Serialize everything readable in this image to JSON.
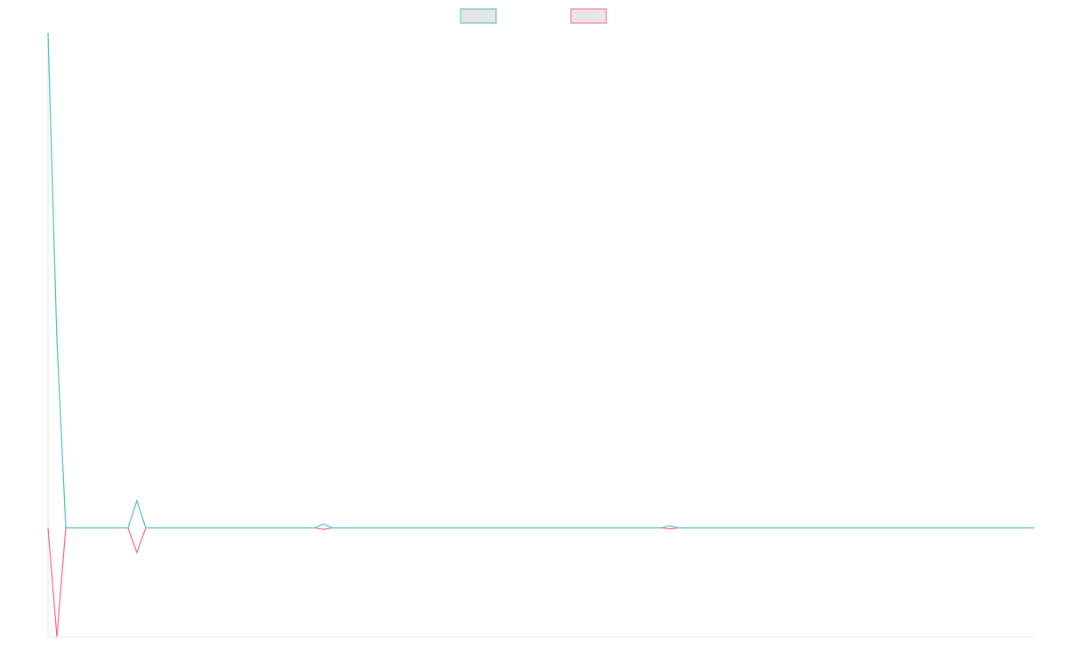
{
  "chart_data": {
    "type": "line",
    "title": "",
    "xlabel": "",
    "ylabel": "",
    "legend": {
      "placement": "top-center",
      "entries": [
        {
          "color": "#4bc0c0",
          "fill": "#e6e6e6"
        },
        {
          "color": "#ff6384",
          "fill": "#e6e6e6"
        }
      ]
    },
    "grid": false,
    "x": [
      0,
      1,
      2,
      3,
      4,
      5,
      6,
      7,
      8,
      9,
      10,
      11,
      12,
      13,
      14,
      15,
      16,
      17,
      18,
      19,
      20,
      21,
      22,
      23,
      24,
      25,
      26,
      27,
      28,
      29,
      30,
      31,
      32,
      33,
      34,
      35,
      36,
      37,
      38,
      39,
      40,
      41,
      42,
      43,
      44,
      45,
      46,
      47,
      48,
      49,
      50,
      51,
      52,
      53,
      54,
      55,
      56,
      57,
      58,
      59,
      60,
      61,
      62,
      63,
      64,
      65,
      66,
      67,
      68,
      69,
      70,
      71,
      72,
      73,
      74,
      75,
      76,
      77,
      78,
      79,
      80,
      81,
      82,
      83,
      84,
      85,
      86,
      87,
      88,
      89,
      90,
      91,
      92,
      93,
      94,
      95,
      96,
      97,
      98,
      99,
      100,
      101,
      102,
      103,
      104,
      105,
      106,
      107,
      108,
      109,
      110,
      111
    ],
    "xlim": [
      0,
      111
    ],
    "ylim": [
      -22,
      100
    ],
    "series": [
      {
        "color": "#4bc0c0",
        "values": [
          100,
          38,
          0,
          0,
          0,
          0,
          0,
          0,
          0,
          0,
          5.5,
          0,
          0,
          0,
          0,
          0,
          0,
          0,
          0,
          0,
          0,
          0,
          0,
          0,
          0,
          0,
          0,
          0,
          0,
          0,
          0,
          0.8,
          0,
          0,
          0,
          0,
          0,
          0,
          0,
          0,
          0,
          0,
          0,
          0,
          0,
          0,
          0,
          0,
          0,
          0,
          0,
          0,
          0,
          0,
          0,
          0,
          0,
          0,
          0,
          0,
          0,
          0,
          0,
          0,
          0,
          0,
          0,
          0,
          0,
          0,
          0.4,
          0,
          0,
          0,
          0,
          0,
          0,
          0,
          0,
          0,
          0,
          0,
          0,
          0,
          0,
          0,
          0,
          0,
          0,
          0,
          0,
          0,
          0,
          0,
          0,
          0,
          0,
          0,
          0,
          0,
          0,
          0,
          0,
          0,
          0,
          0,
          0,
          0,
          0,
          0,
          0,
          0
        ]
      },
      {
        "color": "#ff6384",
        "values": [
          0,
          -22,
          0,
          0,
          0,
          0,
          0,
          0,
          0,
          0,
          -5,
          0,
          0,
          0,
          0,
          0,
          0,
          0,
          0,
          0,
          0,
          0,
          0,
          0,
          0,
          0,
          0,
          0,
          0,
          0,
          0,
          -0.3,
          0,
          0,
          0,
          0,
          0,
          0,
          0,
          0,
          0,
          0,
          0,
          0,
          0,
          0,
          0,
          0,
          0,
          0,
          0,
          0,
          0,
          0,
          0,
          0,
          0,
          0,
          0,
          0,
          0,
          0,
          0,
          0,
          0,
          0,
          0,
          0,
          0,
          0,
          -0.2,
          0,
          0,
          0,
          0,
          0,
          0,
          0,
          0,
          0,
          0,
          0,
          0,
          0,
          0,
          0,
          0,
          0,
          0,
          0,
          0,
          0,
          0,
          0,
          0,
          0,
          0,
          0,
          0,
          0,
          0,
          0,
          0,
          0,
          0,
          0,
          0,
          0,
          0,
          0,
          0,
          0
        ]
      }
    ]
  }
}
